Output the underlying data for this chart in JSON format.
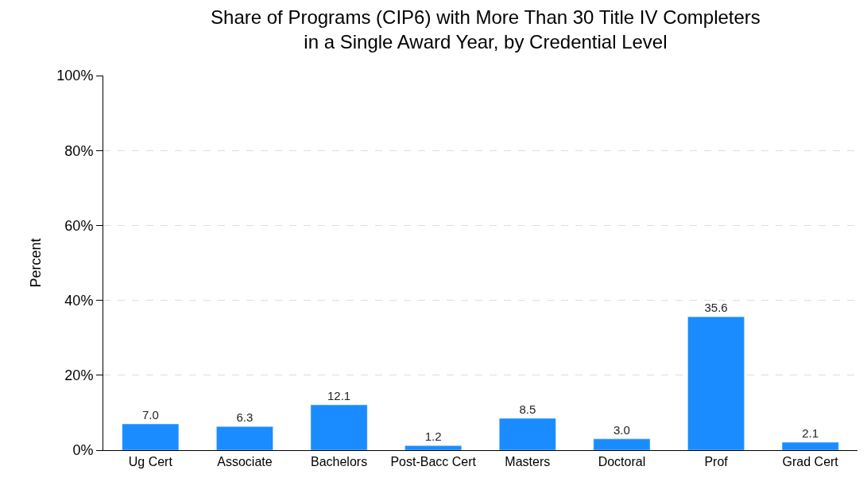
{
  "chart_data": {
    "type": "bar",
    "title": "Share of Programs (CIP6) with More Than 30 Title IV Completers\nin a Single Award Year, by Credential Level",
    "ylabel": "Percent",
    "categories": [
      "Ug Cert",
      "Associate",
      "Bachelors",
      "Post-Bacc Cert",
      "Masters",
      "Doctoral",
      "Prof",
      "Grad Cert"
    ],
    "values": [
      7.0,
      6.3,
      12.1,
      1.2,
      8.5,
      3.0,
      35.6,
      2.1
    ],
    "value_labels": [
      "7.0",
      "6.3",
      "12.1",
      "1.2",
      "8.5",
      "3.0",
      "35.6",
      "2.1"
    ],
    "color": "#1a8cff",
    "ylim": [
      0,
      100
    ],
    "yticks": [
      {
        "value": 0,
        "label": "0%"
      },
      {
        "value": 20,
        "label": "20%"
      },
      {
        "value": 40,
        "label": "40%"
      },
      {
        "value": 60,
        "label": "60%"
      },
      {
        "value": 80,
        "label": "80%"
      },
      {
        "value": 100,
        "label": "100%"
      }
    ],
    "grid": "y"
  }
}
